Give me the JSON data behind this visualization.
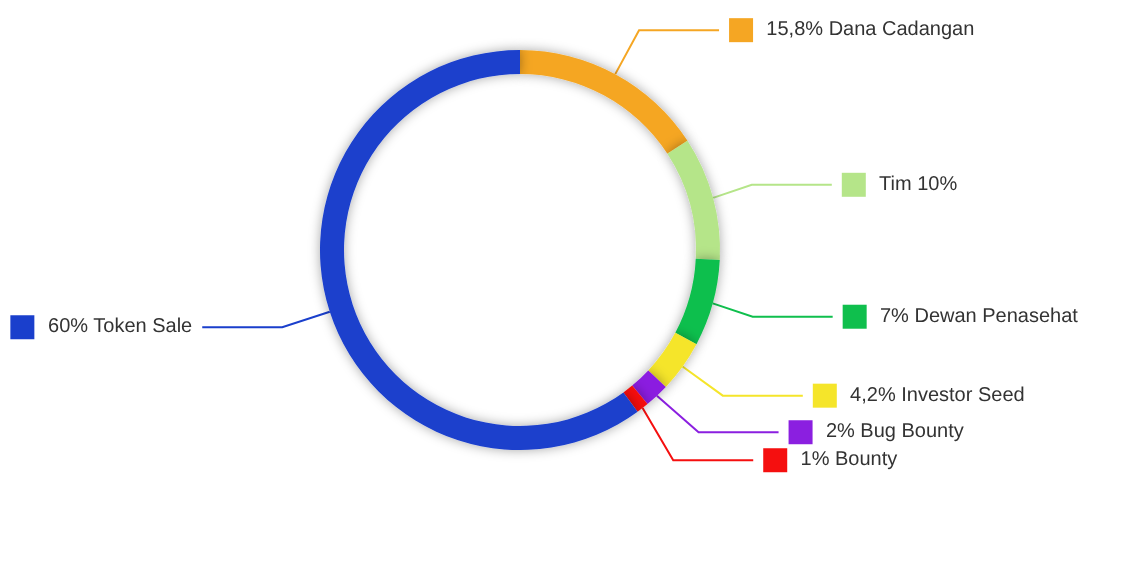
{
  "chart_data": {
    "type": "donut",
    "categories": [
      "15,8% Dana Cadangan",
      "Tim 10%",
      "7% Dewan Penasehat",
      "4,2% Investor Seed",
      "2% Bug Bounty",
      "1% Bounty",
      "60% Token Sale"
    ],
    "values": [
      15.8,
      10,
      7,
      4.2,
      2,
      1,
      60
    ],
    "colors": [
      "#f5a623",
      "#b5e589",
      "#0fbf4d",
      "#f5e52a",
      "#8b1fe0",
      "#f50f0f",
      "#1a3fcc"
    ],
    "legend": "right"
  }
}
